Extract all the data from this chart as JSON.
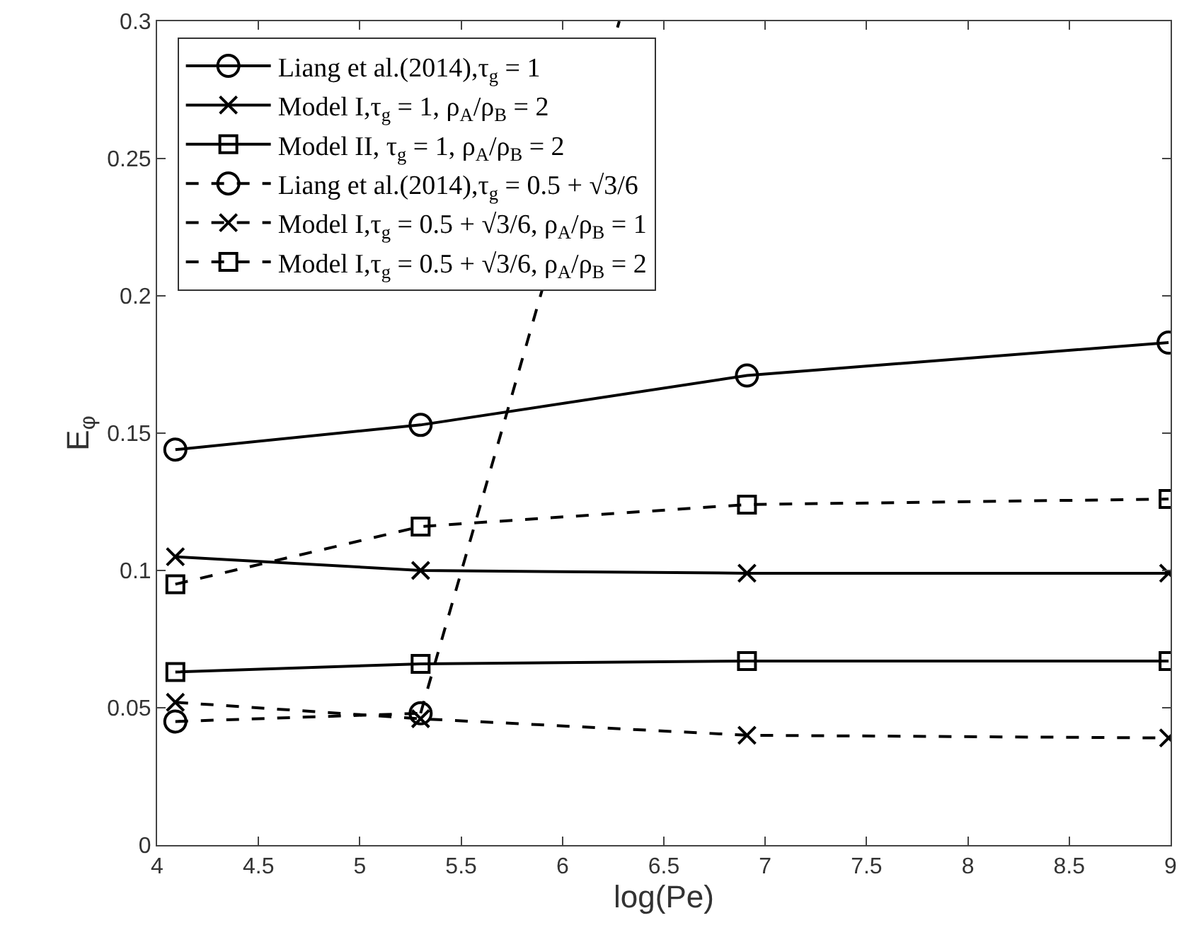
{
  "chart_data": {
    "type": "line",
    "xlabel": "log(Pe)",
    "ylabel": "E$_{φ}$",
    "x": [
      4.09,
      5.3,
      6.91,
      8.99
    ],
    "series": [
      {
        "name": "Liang et al.(2014),τ$_{g}$ = 1",
        "color": "#000000",
        "marker": "circle",
        "line_style": "solid",
        "values": [
          0.144,
          0.153,
          0.171,
          0.183
        ]
      },
      {
        "name": "Model I,τ$_{g}$ = 1, ρ$_{A}$/ρ$_{B}$ = 2",
        "color": "#000000",
        "marker": "cross",
        "line_style": "solid",
        "values": [
          0.105,
          0.1,
          0.099,
          0.099
        ]
      },
      {
        "name": "Model II, τ$_{g}$ = 1, ρ$_{A}$/ρ$_{B}$ = 2",
        "color": "#000000",
        "marker": "square",
        "line_style": "solid",
        "values": [
          0.063,
          0.066,
          0.067,
          0.067
        ]
      },
      {
        "name": "Liang et al.(2014),τ$_{g}$ = 0.5 + √3/6",
        "color": "#000000",
        "marker": "circle",
        "line_style": "dashed",
        "values": [
          0.045,
          0.048,
          null,
          null
        ]
      },
      {
        "color": "#000000",
        "marker": "none",
        "line_style": "dashed",
        "x": [
          5.3,
          6.28
        ],
        "values": [
          0.048,
          0.3
        ]
      },
      {
        "name": "Model I,τ$_{g}$ = 0.5 + √3/6, ρ$_{A}$/ρ$_{B}$ = 1",
        "color": "#000000",
        "marker": "cross",
        "line_style": "dashed",
        "values": [
          0.052,
          0.046,
          0.04,
          0.039
        ]
      },
      {
        "name": "Model I,τ$_{g}$ = 0.5 + √3/6, ρ$_{A}$/ρ$_{B}$ = 2",
        "color": "#000000",
        "marker": "square",
        "line_style": "dashed",
        "values": [
          0.095,
          0.116,
          0.124,
          0.126
        ]
      }
    ],
    "xlim": [
      4,
      9
    ],
    "xticks": [
      4,
      4.5,
      5,
      5.5,
      6,
      6.5,
      7,
      7.5,
      8,
      8.5,
      9
    ],
    "ylim": [
      0,
      0.3
    ],
    "yticks": [
      0,
      0.05,
      0.1,
      0.15,
      0.2,
      0.25,
      0.3
    ],
    "legend": "top left"
  }
}
